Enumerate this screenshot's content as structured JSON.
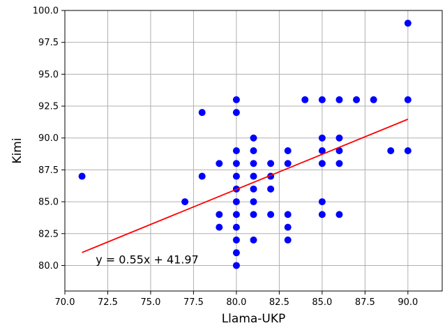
{
  "chart_data": {
    "type": "scatter",
    "title": "",
    "xlabel": "Llama-UKP",
    "ylabel": "Kimi",
    "xlim": [
      70.0,
      92.0
    ],
    "ylim": [
      78.0,
      100.0
    ],
    "xticks": [
      70.0,
      72.5,
      75.0,
      77.5,
      80.0,
      82.5,
      85.0,
      87.5,
      90.0
    ],
    "yticks": [
      80.0,
      82.5,
      85.0,
      87.5,
      90.0,
      92.5,
      95.0,
      97.5,
      100.0
    ],
    "xtick_labels": [
      "70.0",
      "72.5",
      "75.0",
      "77.5",
      "80.0",
      "82.5",
      "85.0",
      "87.5",
      "90.0"
    ],
    "ytick_labels": [
      "80.0",
      "82.5",
      "85.0",
      "87.5",
      "90.0",
      "92.5",
      "95.0",
      "97.5",
      "100.0"
    ],
    "grid": true,
    "point_color": "#0000ff",
    "line_color": "#ff0000",
    "series": [
      {
        "points": [
          [
            71,
            87
          ],
          [
            77,
            85
          ],
          [
            78,
            92
          ],
          [
            78,
            87
          ],
          [
            79,
            88
          ],
          [
            79,
            84
          ],
          [
            79,
            83
          ],
          [
            80,
            93
          ],
          [
            80,
            92
          ],
          [
            80,
            89
          ],
          [
            80,
            88
          ],
          [
            80,
            87
          ],
          [
            80,
            86
          ],
          [
            80,
            85
          ],
          [
            80,
            84
          ],
          [
            80,
            83
          ],
          [
            80,
            82
          ],
          [
            80,
            81
          ],
          [
            80,
            80
          ],
          [
            81,
            90
          ],
          [
            81,
            89
          ],
          [
            81,
            88
          ],
          [
            81,
            87
          ],
          [
            81,
            86
          ],
          [
            81,
            85
          ],
          [
            81,
            84
          ],
          [
            81,
            82
          ],
          [
            82,
            88
          ],
          [
            82,
            87
          ],
          [
            82,
            86
          ],
          [
            82,
            84
          ],
          [
            83,
            89
          ],
          [
            83,
            88
          ],
          [
            83,
            84
          ],
          [
            83,
            83
          ],
          [
            83,
            82
          ],
          [
            84,
            93
          ],
          [
            85,
            93
          ],
          [
            85,
            90
          ],
          [
            85,
            89
          ],
          [
            85,
            88
          ],
          [
            85,
            85
          ],
          [
            85,
            84
          ],
          [
            86,
            93
          ],
          [
            86,
            90
          ],
          [
            86,
            89
          ],
          [
            86,
            88
          ],
          [
            86,
            84
          ],
          [
            87,
            93
          ],
          [
            88,
            93
          ],
          [
            89,
            89
          ],
          [
            90,
            99
          ],
          [
            90,
            93
          ],
          [
            90,
            89
          ]
        ]
      }
    ],
    "regression": {
      "slope": 0.55,
      "intercept": 41.97,
      "x_range": [
        71,
        90
      ]
    },
    "annotations": [
      {
        "text": "y = 0.55x + 41.97",
        "x": 71.8,
        "y": 80.5
      }
    ]
  }
}
